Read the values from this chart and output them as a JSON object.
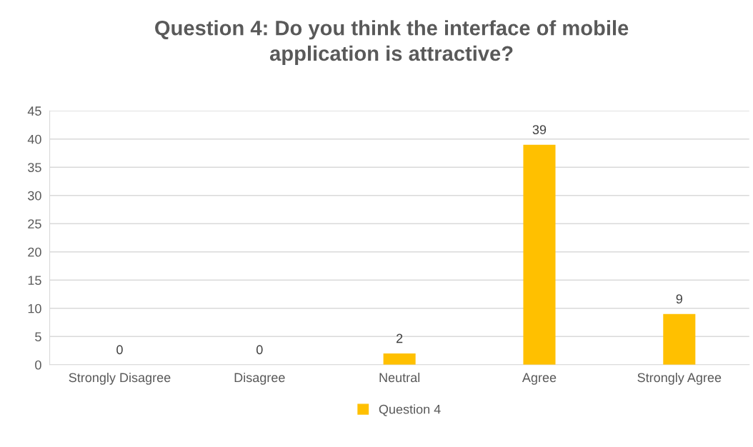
{
  "chart_data": {
    "type": "bar",
    "title": "Question 4: Do you think the interface of mobile\napplication is attractive?",
    "categories": [
      "Strongly Disagree",
      "Disagree",
      "Neutral",
      "Agree",
      "Strongly Agree"
    ],
    "series": [
      {
        "name": "Question 4",
        "color": "#ffc000",
        "values": [
          0,
          0,
          2,
          39,
          9
        ]
      }
    ],
    "ylim": [
      0,
      45
    ],
    "yticks": [
      0,
      5,
      10,
      15,
      20,
      25,
      30,
      35,
      40,
      45
    ],
    "grid": "y",
    "legend": "bottom",
    "data_labels": true
  }
}
